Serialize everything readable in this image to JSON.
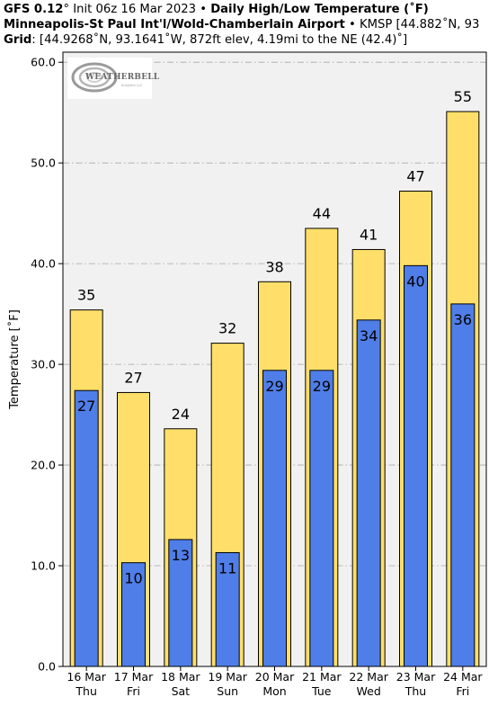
{
  "header": {
    "model": "GFS 0.12",
    "deg": "°",
    "init": " Init 06z 16 Mar 2023 • ",
    "product": "Daily High/Low Temperature (˚F)",
    "station": "Minneapolis-St Paul Int'l/Wold-Chamberlain Airport",
    "station_extra": " • KMSP [44.882˚N, 93",
    "grid_label": "Grid",
    "grid_text": ": [44.9268˚N, 93.1641˚W, 872ft elev, 4.19mi to the NE (42.4)˚]"
  },
  "logo": {
    "text": "WEATHERBELL",
    "subtext": "Analytics LLC"
  },
  "colors": {
    "high": "#ffdf6a",
    "low": "#4f7ee8",
    "plot_bg": "#f2f1f1",
    "grid": "#a8a8a8"
  },
  "chart_data": {
    "type": "bar",
    "ylabel": "Temperature [˚F]",
    "ylim": [
      0,
      61
    ],
    "yticks": [
      0,
      10,
      20,
      30,
      40,
      50,
      60
    ],
    "ytick_labels": [
      "0.0",
      "10.0",
      "20.0",
      "30.0",
      "40.0",
      "50.0",
      "60.0"
    ],
    "grid": true,
    "categories": [
      "16 Mar",
      "17 Mar",
      "18 Mar",
      "19 Mar",
      "20 Mar",
      "21 Mar",
      "22 Mar",
      "23 Mar",
      "24 Mar"
    ],
    "weekdays": [
      "Thu",
      "Fri",
      "Sat",
      "Sun",
      "Mon",
      "Tue",
      "Wed",
      "Thu",
      "Fri"
    ],
    "series": [
      {
        "key": "high",
        "values": [
          35.4,
          27.2,
          23.6,
          32.1,
          38.2,
          43.5,
          41.4,
          47.2,
          55.1
        ],
        "labels": [
          "35",
          "27",
          "24",
          "32",
          "38",
          "44",
          "41",
          "47",
          "55"
        ]
      },
      {
        "key": "low",
        "values": [
          27.4,
          10.3,
          12.6,
          11.3,
          29.4,
          29.4,
          34.4,
          39.8,
          36.0
        ],
        "labels": [
          "27",
          "10",
          "13",
          "11",
          "29",
          "29",
          "34",
          "40",
          "36"
        ]
      }
    ]
  }
}
